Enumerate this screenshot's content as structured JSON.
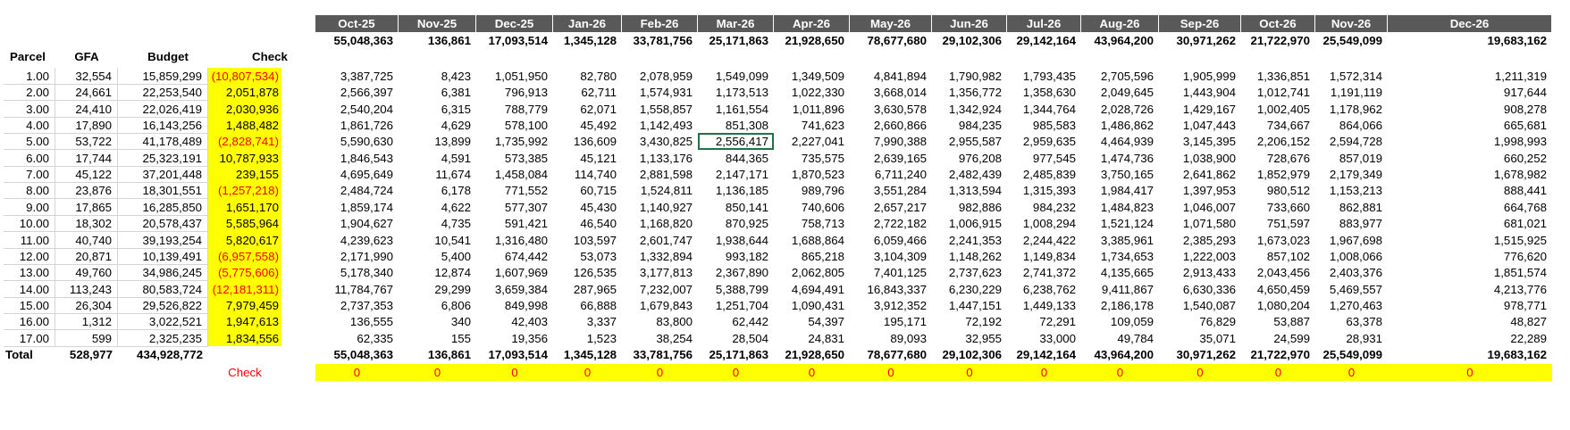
{
  "months": [
    "Oct-25",
    "Nov-25",
    "Dec-25",
    "Jan-26",
    "Feb-26",
    "Mar-26",
    "Apr-26",
    "May-26",
    "Jun-26",
    "Jul-26",
    "Aug-26",
    "Sep-26",
    "Oct-26",
    "Nov-26",
    "Dec-26"
  ],
  "month_totals": [
    "55,048,363",
    "136,861",
    "17,093,514",
    "1,345,128",
    "33,781,756",
    "25,171,863",
    "21,928,650",
    "78,677,680",
    "29,102,306",
    "29,142,164",
    "43,964,200",
    "30,971,262",
    "21,722,970",
    "25,549,099",
    "19,683,162"
  ],
  "headers": {
    "parcel": "Parcel",
    "gfa": "GFA",
    "budget": "Budget",
    "check": "Check"
  },
  "rows": [
    {
      "parcel": "1.00",
      "gfa": "32,554",
      "budget": "15,859,299",
      "check": "(10,807,534)",
      "neg": true,
      "values": [
        "3,387,725",
        "8,423",
        "1,051,950",
        "82,780",
        "2,078,959",
        "1,549,099",
        "1,349,509",
        "4,841,894",
        "1,790,982",
        "1,793,435",
        "2,705,596",
        "1,905,999",
        "1,336,851",
        "1,572,314",
        "1,211,319"
      ]
    },
    {
      "parcel": "2.00",
      "gfa": "24,661",
      "budget": "22,253,540",
      "check": "2,051,878",
      "neg": false,
      "values": [
        "2,566,397",
        "6,381",
        "796,913",
        "62,711",
        "1,574,931",
        "1,173,513",
        "1,022,330",
        "3,668,014",
        "1,356,772",
        "1,358,630",
        "2,049,645",
        "1,443,904",
        "1,012,741",
        "1,191,119",
        "917,644"
      ]
    },
    {
      "parcel": "3.00",
      "gfa": "24,410",
      "budget": "22,026,419",
      "check": "2,030,936",
      "neg": false,
      "values": [
        "2,540,204",
        "6,315",
        "788,779",
        "62,071",
        "1,558,857",
        "1,161,554",
        "1,011,896",
        "3,630,578",
        "1,342,924",
        "1,344,764",
        "2,028,726",
        "1,429,167",
        "1,002,405",
        "1,178,962",
        "908,278"
      ]
    },
    {
      "parcel": "4.00",
      "gfa": "17,890",
      "budget": "16,143,256",
      "check": "1,488,482",
      "neg": false,
      "values": [
        "1,861,726",
        "4,629",
        "578,100",
        "45,492",
        "1,142,493",
        "851,308",
        "741,623",
        "2,660,866",
        "984,235",
        "985,583",
        "1,486,862",
        "1,047,443",
        "734,667",
        "864,066",
        "665,681"
      ]
    },
    {
      "parcel": "5.00",
      "gfa": "53,722",
      "budget": "41,178,489",
      "check": "(2,828,741)",
      "neg": true,
      "values": [
        "5,590,630",
        "13,899",
        "1,735,992",
        "136,609",
        "3,430,825",
        "2,556,417",
        "2,227,041",
        "7,990,388",
        "2,955,587",
        "2,959,635",
        "4,464,939",
        "3,145,395",
        "2,206,152",
        "2,594,728",
        "1,998,993"
      ]
    },
    {
      "parcel": "6.00",
      "gfa": "17,744",
      "budget": "25,323,191",
      "check": "10,787,933",
      "neg": false,
      "values": [
        "1,846,543",
        "4,591",
        "573,385",
        "45,121",
        "1,133,176",
        "844,365",
        "735,575",
        "2,639,165",
        "976,208",
        "977,545",
        "1,474,736",
        "1,038,900",
        "728,676",
        "857,019",
        "660,252"
      ]
    },
    {
      "parcel": "7.00",
      "gfa": "45,122",
      "budget": "37,201,448",
      "check": "239,155",
      "neg": false,
      "values": [
        "4,695,649",
        "11,674",
        "1,458,084",
        "114,740",
        "2,881,598",
        "2,147,171",
        "1,870,523",
        "6,711,240",
        "2,482,439",
        "2,485,839",
        "3,750,165",
        "2,641,862",
        "1,852,979",
        "2,179,349",
        "1,678,982"
      ]
    },
    {
      "parcel": "8.00",
      "gfa": "23,876",
      "budget": "18,301,551",
      "check": "(1,257,218)",
      "neg": true,
      "values": [
        "2,484,724",
        "6,178",
        "771,552",
        "60,715",
        "1,524,811",
        "1,136,185",
        "989,796",
        "3,551,284",
        "1,313,594",
        "1,315,393",
        "1,984,417",
        "1,397,953",
        "980,512",
        "1,153,213",
        "888,441"
      ]
    },
    {
      "parcel": "9.00",
      "gfa": "17,865",
      "budget": "16,285,850",
      "check": "1,651,170",
      "neg": false,
      "values": [
        "1,859,174",
        "4,622",
        "577,307",
        "45,430",
        "1,140,927",
        "850,141",
        "740,606",
        "2,657,217",
        "982,886",
        "984,232",
        "1,484,823",
        "1,046,007",
        "733,660",
        "862,881",
        "664,768"
      ]
    },
    {
      "parcel": "10.00",
      "gfa": "18,302",
      "budget": "20,578,437",
      "check": "5,585,964",
      "neg": false,
      "values": [
        "1,904,627",
        "4,735",
        "591,421",
        "46,540",
        "1,168,820",
        "870,925",
        "758,713",
        "2,722,182",
        "1,006,915",
        "1,008,294",
        "1,521,124",
        "1,071,580",
        "751,597",
        "883,977",
        "681,021"
      ]
    },
    {
      "parcel": "11.00",
      "gfa": "40,740",
      "budget": "39,193,254",
      "check": "5,820,617",
      "neg": false,
      "values": [
        "4,239,623",
        "10,541",
        "1,316,480",
        "103,597",
        "2,601,747",
        "1,938,644",
        "1,688,864",
        "6,059,466",
        "2,241,353",
        "2,244,422",
        "3,385,961",
        "2,385,293",
        "1,673,023",
        "1,967,698",
        "1,515,925"
      ]
    },
    {
      "parcel": "12.00",
      "gfa": "20,871",
      "budget": "10,139,491",
      "check": "(6,957,558)",
      "neg": true,
      "values": [
        "2,171,990",
        "5,400",
        "674,442",
        "53,073",
        "1,332,894",
        "993,182",
        "865,218",
        "3,104,309",
        "1,148,262",
        "1,149,834",
        "1,734,653",
        "1,222,003",
        "857,102",
        "1,008,066",
        "776,620"
      ]
    },
    {
      "parcel": "13.00",
      "gfa": "49,760",
      "budget": "34,986,245",
      "check": "(5,775,606)",
      "neg": true,
      "values": [
        "5,178,340",
        "12,874",
        "1,607,969",
        "126,535",
        "3,177,813",
        "2,367,890",
        "2,062,805",
        "7,401,125",
        "2,737,623",
        "2,741,372",
        "4,135,665",
        "2,913,433",
        "2,043,456",
        "2,403,376",
        "1,851,574"
      ]
    },
    {
      "parcel": "14.00",
      "gfa": "113,243",
      "budget": "80,583,724",
      "check": "(12,181,311)",
      "neg": true,
      "values": [
        "11,784,767",
        "29,299",
        "3,659,384",
        "287,965",
        "7,232,007",
        "5,388,799",
        "4,694,491",
        "16,843,337",
        "6,230,229",
        "6,238,762",
        "9,411,867",
        "6,630,336",
        "4,650,459",
        "5,469,557",
        "4,213,776"
      ]
    },
    {
      "parcel": "15.00",
      "gfa": "26,304",
      "budget": "29,526,822",
      "check": "7,979,459",
      "neg": false,
      "values": [
        "2,737,353",
        "6,806",
        "849,998",
        "66,888",
        "1,679,843",
        "1,251,704",
        "1,090,431",
        "3,912,352",
        "1,447,151",
        "1,449,133",
        "2,186,178",
        "1,540,087",
        "1,080,204",
        "1,270,463",
        "978,771"
      ]
    },
    {
      "parcel": "16.00",
      "gfa": "1,312",
      "budget": "3,022,521",
      "check": "1,947,613",
      "neg": false,
      "values": [
        "136,555",
        "340",
        "42,403",
        "3,337",
        "83,800",
        "62,442",
        "54,397",
        "195,171",
        "72,192",
        "72,291",
        "109,059",
        "76,829",
        "53,887",
        "63,378",
        "48,827"
      ]
    },
    {
      "parcel": "17.00",
      "gfa": "599",
      "budget": "2,325,235",
      "check": "1,834,556",
      "neg": false,
      "values": [
        "62,335",
        "155",
        "19,356",
        "1,523",
        "38,254",
        "28,504",
        "24,831",
        "89,093",
        "32,955",
        "33,000",
        "49,784",
        "35,071",
        "24,599",
        "28,931",
        "22,289"
      ]
    }
  ],
  "total": {
    "label": "Total",
    "gfa": "528,977",
    "budget": "434,928,772",
    "values": [
      "55,048,363",
      "136,861",
      "17,093,514",
      "1,345,128",
      "33,781,756",
      "25,171,863",
      "21,928,650",
      "78,677,680",
      "29,102,306",
      "29,142,164",
      "43,964,200",
      "30,971,262",
      "21,722,970",
      "25,549,099",
      "19,683,162"
    ]
  },
  "check_row": {
    "label": "Check",
    "values": [
      "0",
      "0",
      "0",
      "0",
      "0",
      "0",
      "0",
      "0",
      "0",
      "0",
      "0",
      "0",
      "0",
      "0",
      "0"
    ]
  },
  "selected_cell": {
    "row": "5.00",
    "month": "Mar-26"
  },
  "colors": {
    "header_bg": "#595959",
    "highlight": "#ffff00",
    "negative": "#ff0000",
    "selection": "#217346"
  }
}
